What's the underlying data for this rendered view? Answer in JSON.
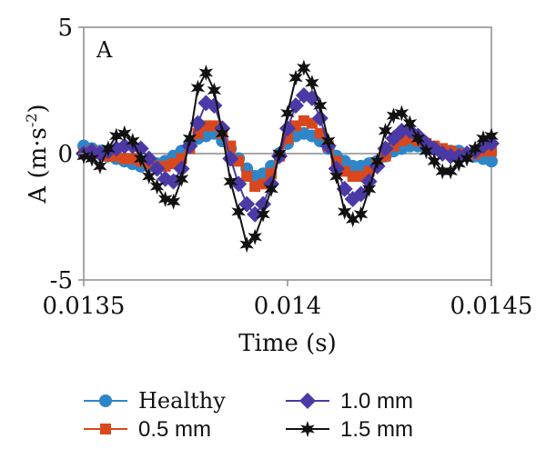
{
  "chart_data": {
    "type": "line",
    "panel_label": "A",
    "xlabel": "Time (s)",
    "ylabel_main": "A (m·s",
    "ylabel_sup": "-2",
    "ylabel_tail": ")",
    "xlim": [
      0.0135,
      0.0145
    ],
    "ylim": [
      -5,
      5
    ],
    "x_ticks": [
      0.0135,
      0.014,
      0.0145
    ],
    "x_tick_labels": [
      "0.0135",
      "0.014",
      "0.0145"
    ],
    "y_ticks": [
      -5,
      0,
      5
    ],
    "y_tick_labels": [
      "-5",
      "0",
      "5"
    ],
    "grid": false,
    "legend_position": "bottom",
    "series": [
      {
        "name": "Healthy",
        "color": "#2e86c8",
        "marker": "circle",
        "x": [
          0.0135,
          0.01352,
          0.01354,
          0.01356,
          0.01358,
          0.0136,
          0.01362,
          0.01364,
          0.01366,
          0.01368,
          0.0137,
          0.01372,
          0.01374,
          0.01376,
          0.01378,
          0.0138,
          0.01382,
          0.01384,
          0.01386,
          0.01388,
          0.0139,
          0.01392,
          0.01394,
          0.01396,
          0.01398,
          0.014,
          0.01402,
          0.01404,
          0.01406,
          0.01408,
          0.0141,
          0.01412,
          0.01414,
          0.01416,
          0.01418,
          0.0142,
          0.01422,
          0.01424,
          0.01426,
          0.01428,
          0.0143,
          0.01432,
          0.01434,
          0.01436,
          0.01438,
          0.0144,
          0.01442,
          0.01444,
          0.01446,
          0.01448,
          0.0145
        ],
        "y": [
          0.3,
          0.2,
          0.1,
          -0.1,
          -0.2,
          -0.3,
          -0.4,
          -0.5,
          -0.5,
          -0.4,
          -0.3,
          -0.1,
          0.1,
          0.4,
          0.6,
          0.7,
          0.8,
          0.5,
          0.2,
          -0.2,
          -0.6,
          -0.9,
          -0.8,
          -0.5,
          0.0,
          0.4,
          0.7,
          0.8,
          0.7,
          0.5,
          0.2,
          -0.1,
          -0.3,
          -0.5,
          -0.5,
          -0.4,
          -0.3,
          -0.1,
          0.1,
          0.2,
          0.3,
          0.3,
          0.2,
          0.2,
          0.1,
          0.1,
          0.1,
          0.0,
          -0.1,
          -0.2,
          -0.3
        ]
      },
      {
        "name": "0.5 mm",
        "color": "#d9481c",
        "marker": "square",
        "x": [
          0.0135,
          0.01352,
          0.01354,
          0.01356,
          0.01358,
          0.0136,
          0.01362,
          0.01364,
          0.01366,
          0.01368,
          0.0137,
          0.01372,
          0.01374,
          0.01376,
          0.01378,
          0.0138,
          0.01382,
          0.01384,
          0.01386,
          0.01388,
          0.0139,
          0.01392,
          0.01394,
          0.01396,
          0.01398,
          0.014,
          0.01402,
          0.01404,
          0.01406,
          0.01408,
          0.0141,
          0.01412,
          0.01414,
          0.01416,
          0.01418,
          0.0142,
          0.01422,
          0.01424,
          0.01426,
          0.01428,
          0.0143,
          0.01432,
          0.01434,
          0.01436,
          0.01438,
          0.0144,
          0.01442,
          0.01444,
          0.01446,
          0.01448,
          0.0145
        ],
        "y": [
          0.0,
          0.1,
          0.0,
          -0.1,
          -0.1,
          -0.2,
          -0.2,
          -0.3,
          -0.4,
          -0.5,
          -0.5,
          -0.4,
          -0.2,
          0.2,
          0.8,
          1.1,
          1.1,
          0.8,
          0.3,
          -0.3,
          -0.9,
          -1.3,
          -1.2,
          -0.8,
          -0.1,
          0.6,
          1.1,
          1.3,
          1.2,
          0.8,
          0.3,
          -0.3,
          -0.7,
          -0.9,
          -0.9,
          -0.7,
          -0.4,
          -0.1,
          0.3,
          0.5,
          0.6,
          0.5,
          0.4,
          0.3,
          0.2,
          0.1,
          0.0,
          0.0,
          0.0,
          0.1,
          0.1
        ]
      },
      {
        "name": "1.0 mm",
        "color": "#4b3aa6",
        "marker": "diamond",
        "x": [
          0.0135,
          0.01352,
          0.01354,
          0.01356,
          0.01358,
          0.0136,
          0.01362,
          0.01364,
          0.01366,
          0.01368,
          0.0137,
          0.01372,
          0.01374,
          0.01376,
          0.01378,
          0.0138,
          0.01382,
          0.01384,
          0.01386,
          0.01388,
          0.0139,
          0.01392,
          0.01394,
          0.01396,
          0.01398,
          0.014,
          0.01402,
          0.01404,
          0.01406,
          0.01408,
          0.0141,
          0.01412,
          0.01414,
          0.01416,
          0.01418,
          0.0142,
          0.01422,
          0.01424,
          0.01426,
          0.01428,
          0.0143,
          0.01432,
          0.01434,
          0.01436,
          0.01438,
          0.0144,
          0.01442,
          0.01444,
          0.01446,
          0.01448,
          0.0145
        ],
        "y": [
          0.0,
          0.1,
          0.0,
          0.1,
          0.2,
          0.3,
          0.3,
          0.2,
          -0.2,
          -0.6,
          -1.0,
          -1.1,
          -0.6,
          0.3,
          1.2,
          2.0,
          1.9,
          1.0,
          -0.2,
          -1.2,
          -2.0,
          -2.4,
          -2.0,
          -1.2,
          -0.1,
          1.0,
          1.9,
          2.3,
          2.2,
          1.4,
          0.3,
          -0.6,
          -1.4,
          -1.8,
          -1.6,
          -1.1,
          -0.5,
          0.2,
          0.6,
          0.9,
          0.9,
          0.7,
          0.4,
          0.2,
          0.0,
          -0.1,
          -0.1,
          0.0,
          0.1,
          0.3,
          0.4
        ]
      },
      {
        "name": "1.5 mm",
        "color": "#111111",
        "marker": "star",
        "x": [
          0.0135,
          0.01352,
          0.01354,
          0.01356,
          0.01358,
          0.0136,
          0.01362,
          0.01364,
          0.01366,
          0.01368,
          0.0137,
          0.01372,
          0.01374,
          0.01376,
          0.01378,
          0.0138,
          0.01382,
          0.01384,
          0.01386,
          0.01388,
          0.0139,
          0.01392,
          0.01394,
          0.01396,
          0.01398,
          0.014,
          0.01402,
          0.01404,
          0.01406,
          0.01408,
          0.0141,
          0.01412,
          0.01414,
          0.01416,
          0.01418,
          0.0142,
          0.01422,
          0.01424,
          0.01426,
          0.01428,
          0.0143,
          0.01432,
          0.01434,
          0.01436,
          0.01438,
          0.0144,
          0.01442,
          0.01444,
          0.01446,
          0.01448,
          0.0145
        ],
        "y": [
          -0.1,
          -0.2,
          -0.5,
          0.2,
          0.7,
          0.8,
          0.5,
          -0.2,
          -0.9,
          -1.3,
          -1.8,
          -1.9,
          -1.0,
          0.6,
          2.6,
          3.2,
          2.5,
          0.8,
          -1.1,
          -2.3,
          -3.6,
          -3.3,
          -2.4,
          -1.4,
          0.0,
          1.6,
          3.0,
          3.4,
          2.8,
          1.9,
          0.5,
          -0.9,
          -2.3,
          -2.6,
          -2.4,
          -1.4,
          -0.3,
          0.9,
          1.5,
          1.6,
          1.2,
          0.6,
          0.1,
          -0.3,
          -0.7,
          -0.7,
          -0.4,
          -0.2,
          0.2,
          0.6,
          0.7
        ]
      }
    ]
  }
}
